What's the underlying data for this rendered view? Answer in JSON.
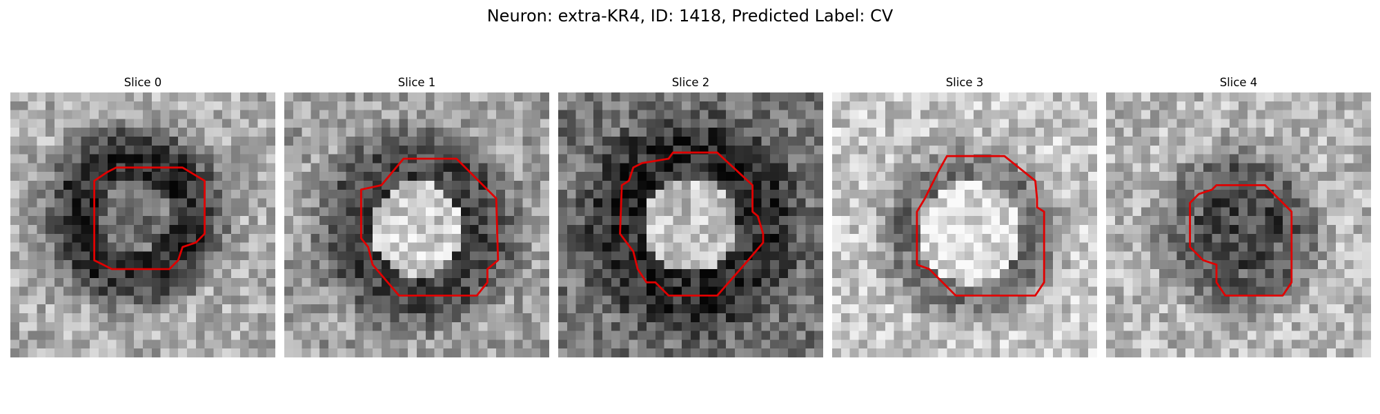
{
  "figure": {
    "title": "Neuron: extra-KR4, ID: 1418, Predicted Label: CV",
    "contour_color": "#e00000",
    "grid_size": 30,
    "panels": [
      {
        "title": "Slice 0",
        "blob": {
          "cx": 14,
          "cy": 14,
          "radius": 5.5,
          "center_tone": 0.45,
          "ring_tone": 0.2,
          "ring_width": 2.5,
          "background_tone": 0.68
        },
        "contour": [
          [
            11,
            9
          ],
          [
            12,
            8.5
          ],
          [
            19.5,
            8.5
          ],
          [
            22,
            10
          ],
          [
            22,
            16
          ],
          [
            21,
            17
          ],
          [
            19.5,
            17.5
          ],
          [
            19,
            19
          ],
          [
            18,
            20
          ],
          [
            11.5,
            20
          ],
          [
            9.5,
            19
          ],
          [
            9.5,
            10
          ]
        ]
      },
      {
        "title": "Slice 1",
        "blob": {
          "cx": 15,
          "cy": 15.5,
          "radius": 6.5,
          "center_tone": 0.8,
          "ring_tone": 0.28,
          "ring_width": 2.5,
          "background_tone": 0.62
        },
        "contour": [
          [
            11,
            10.5
          ],
          [
            13.5,
            7.5
          ],
          [
            19.5,
            7.5
          ],
          [
            24,
            12
          ],
          [
            24.2,
            19
          ],
          [
            23,
            20
          ],
          [
            23,
            21.5
          ],
          [
            21.8,
            23
          ],
          [
            13,
            23
          ],
          [
            10,
            19.5
          ],
          [
            9.5,
            17.5
          ],
          [
            8.7,
            16.5
          ],
          [
            8.7,
            11
          ]
        ]
      },
      {
        "title": "Slice 2",
        "blob": {
          "cx": 15,
          "cy": 15,
          "radius": 7,
          "center_tone": 0.76,
          "ring_tone": 0.18,
          "ring_width": 3,
          "background_tone": 0.45
        },
        "contour": [
          [
            7.2,
            10.5
          ],
          [
            8,
            10
          ],
          [
            8.5,
            8.5
          ],
          [
            9.5,
            8
          ],
          [
            12.5,
            7.5
          ],
          [
            13,
            6.8
          ],
          [
            18,
            6.8
          ],
          [
            22,
            10.5
          ],
          [
            22,
            13.5
          ],
          [
            22.6,
            14
          ],
          [
            23.2,
            16
          ],
          [
            23.2,
            17
          ],
          [
            21.5,
            19
          ],
          [
            18,
            23
          ],
          [
            12.5,
            23
          ],
          [
            11,
            21.5
          ],
          [
            10,
            21.5
          ],
          [
            9,
            20
          ],
          [
            8.5,
            18
          ],
          [
            7,
            16
          ]
        ]
      },
      {
        "title": "Slice 3",
        "blob": {
          "cx": 15.5,
          "cy": 16,
          "radius": 6.5,
          "center_tone": 0.88,
          "ring_tone": 0.45,
          "ring_width": 1.5,
          "background_tone": 0.78
        },
        "contour": [
          [
            9.6,
            13.5
          ],
          [
            10.5,
            12
          ],
          [
            11,
            11
          ],
          [
            11.5,
            10
          ],
          [
            12,
            9
          ],
          [
            13,
            7.2
          ],
          [
            19.5,
            7.2
          ],
          [
            23,
            10
          ],
          [
            23.2,
            12
          ],
          [
            23.2,
            13
          ],
          [
            24,
            13.5
          ],
          [
            24,
            21.5
          ],
          [
            23,
            23
          ],
          [
            14,
            23
          ],
          [
            13,
            22
          ],
          [
            12,
            21
          ],
          [
            11,
            20
          ],
          [
            9.6,
            19.5
          ]
        ]
      },
      {
        "title": "Slice 4",
        "blob": {
          "cx": 15,
          "cy": 15.5,
          "radius": 5.5,
          "center_tone": 0.28,
          "ring_tone": 0.38,
          "ring_width": 1.5,
          "background_tone": 0.72
        },
        "contour": [
          [
            9.5,
            12.5
          ],
          [
            10.5,
            11.5
          ],
          [
            12,
            11
          ],
          [
            12.5,
            10.5
          ],
          [
            18,
            10.5
          ],
          [
            21,
            13.5
          ],
          [
            21,
            21.5
          ],
          [
            20,
            23
          ],
          [
            13.5,
            23
          ],
          [
            12.5,
            21.5
          ],
          [
            12.5,
            19.5
          ],
          [
            11,
            19
          ],
          [
            9.5,
            17.5
          ]
        ]
      }
    ]
  }
}
